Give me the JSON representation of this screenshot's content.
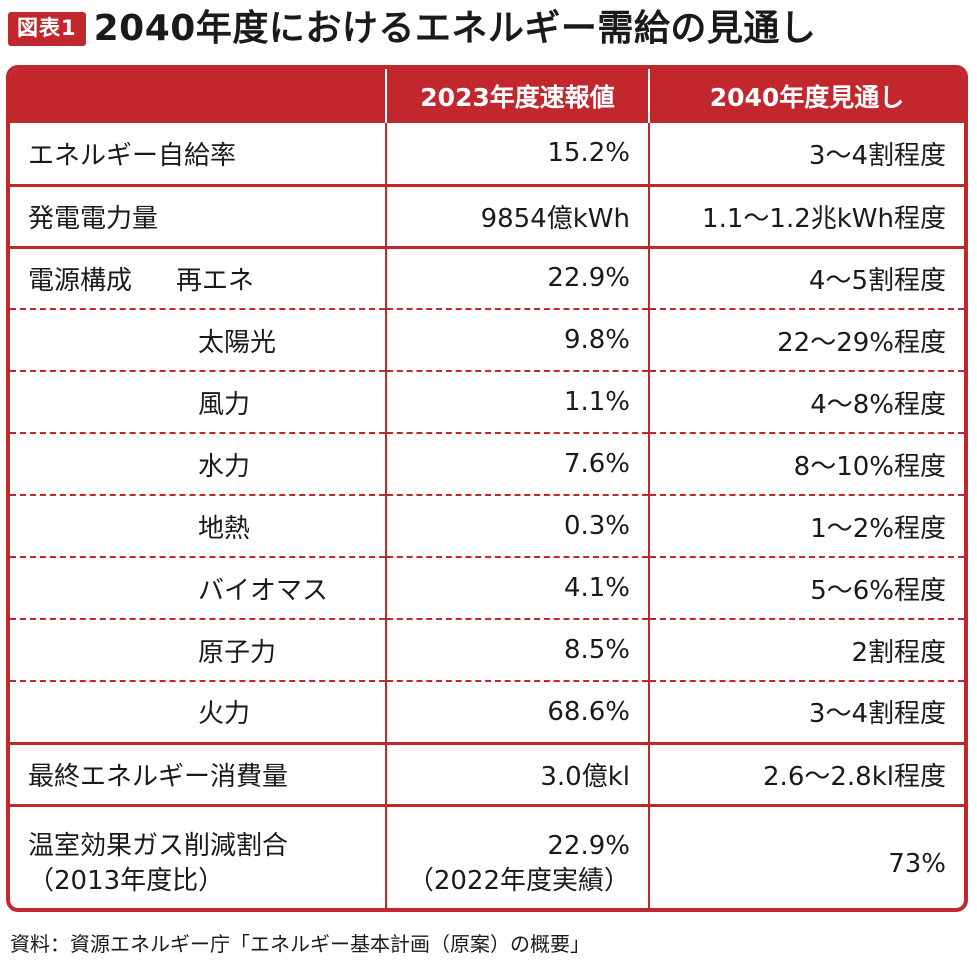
{
  "header": {
    "tag": "図表1",
    "title": "2040年度におけるエネルギー需給の見通し"
  },
  "table": {
    "columns": [
      "",
      "2023年度速報値",
      "2040年度見通し"
    ],
    "rows": [
      {
        "label": "エネルギー自給率",
        "v2023": "15.2%",
        "v2040": "3〜4割程度"
      },
      {
        "label": "発電電力量",
        "v2023": "9854億kWh",
        "v2040": "1.1〜1.2兆kWh程度"
      },
      {
        "group": "電源構成",
        "label": "再エネ",
        "v2023": "22.9%",
        "v2040": "4〜5割程度"
      },
      {
        "label": "太陽光",
        "v2023": "9.8%",
        "v2040": "22〜29%程度"
      },
      {
        "label": "風力",
        "v2023": "1.1%",
        "v2040": "4〜8%程度"
      },
      {
        "label": "水力",
        "v2023": "7.6%",
        "v2040": "8〜10%程度"
      },
      {
        "label": "地熱",
        "v2023": "0.3%",
        "v2040": "1〜2%程度"
      },
      {
        "label": "バイオマス",
        "v2023": "4.1%",
        "v2040": "5〜6%程度"
      },
      {
        "label": "原子力",
        "v2023": "8.5%",
        "v2040": "2割程度"
      },
      {
        "label": "火力",
        "v2023": "68.6%",
        "v2040": "3〜4割程度"
      },
      {
        "label": "最終エネルギー消費量",
        "v2023": "3.0億kl",
        "v2040": "2.6〜2.8kl程度"
      },
      {
        "label": "温室効果ガス削減割合",
        "label2": "（2013年度比）",
        "v2023": "22.9%",
        "v2023b": "（2022年度実績）",
        "v2040": "73%"
      }
    ]
  },
  "footnote": "資料：資源エネルギー庁「エネルギー基本計画（原案）の概要」",
  "colors": {
    "accent": "#c1272d"
  }
}
